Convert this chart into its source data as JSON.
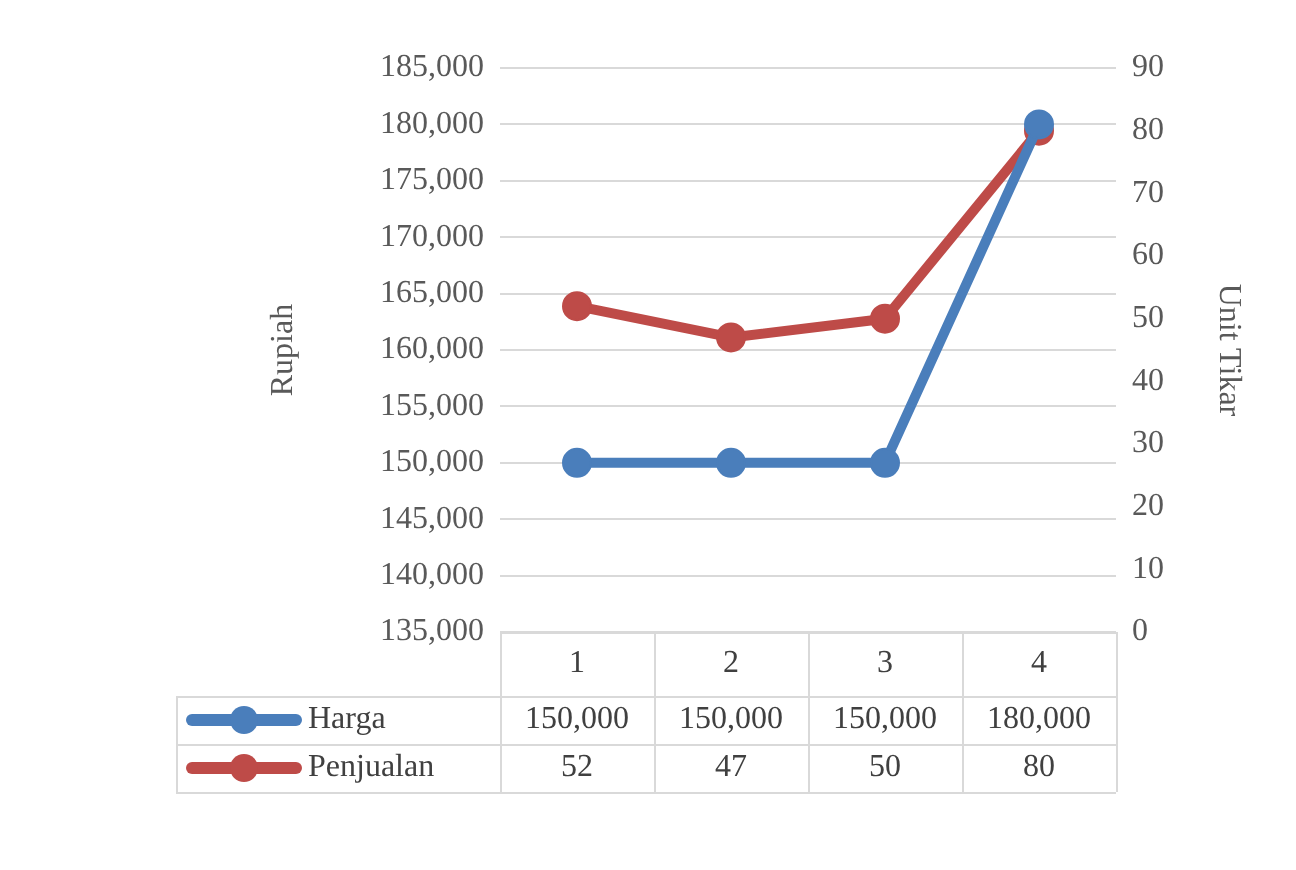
{
  "chart_data": {
    "type": "line",
    "ylabel": "Rupiah",
    "y2label": "Unit Tikar",
    "categories": [
      "1",
      "2",
      "3",
      "4"
    ],
    "series": [
      {
        "name": "Harga",
        "color": "#4a7ebb",
        "values": [
          150000,
          150000,
          150000,
          180000
        ],
        "value_labels": [
          "150,000",
          "150,000",
          "150,000",
          "180,000"
        ]
      },
      {
        "name": "Penjualan",
        "color": "#be4b48",
        "values": [
          52,
          47,
          50,
          80
        ],
        "axis": "y2",
        "value_labels": [
          "52",
          "47",
          "50",
          "80"
        ]
      }
    ],
    "ylim": [
      135000,
      185000
    ],
    "yticks": [
      {
        "value": 135000,
        "label": "135,000"
      },
      {
        "value": 140000,
        "label": "140,000"
      },
      {
        "value": 145000,
        "label": "145,000"
      },
      {
        "value": 150000,
        "label": "150,000"
      },
      {
        "value": 155000,
        "label": "155,000"
      },
      {
        "value": 160000,
        "label": "160,000"
      },
      {
        "value": 165000,
        "label": "165,000"
      },
      {
        "value": 170000,
        "label": "170,000"
      },
      {
        "value": 175000,
        "label": "175,000"
      },
      {
        "value": 180000,
        "label": "180,000"
      },
      {
        "value": 185000,
        "label": "185,000"
      }
    ],
    "y2lim": [
      0,
      90
    ],
    "y2ticks": [
      0,
      10,
      20,
      30,
      40,
      50,
      60,
      70,
      80,
      90
    ],
    "grid": "y",
    "legend": "bottom",
    "marker": "circle",
    "line_style": "solid"
  }
}
